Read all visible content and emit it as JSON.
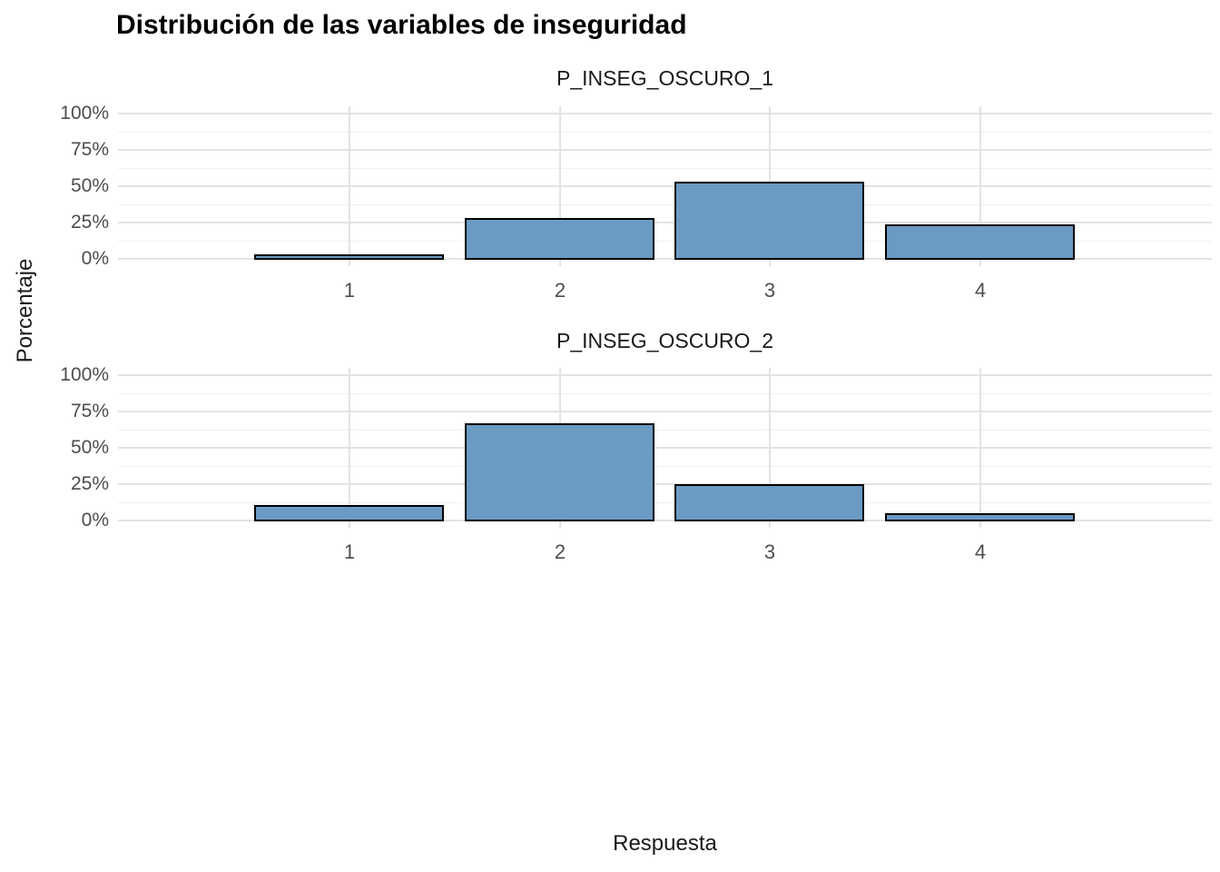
{
  "chart": {
    "title": "Distribución de las variables de inseguridad",
    "ylabel": "Porcentaje",
    "xlabel": "Respuesta"
  },
  "chart_data": {
    "type": "bar",
    "title": "Distribución de las variables de inseguridad",
    "xlabel": "Respuesta",
    "ylabel": "Porcentaje",
    "categories": [
      "1",
      "2",
      "3",
      "4"
    ],
    "facets": [
      {
        "label": "P_INSEG_OSCURO_1",
        "values": [
          1,
          26,
          51,
          22
        ]
      },
      {
        "label": "P_INSEG_OSCURO_2",
        "values": [
          9,
          65,
          23,
          3
        ]
      }
    ],
    "unit": "percent",
    "ylim": [
      0,
      100
    ],
    "y_major_ticks": [
      0,
      25,
      50,
      75,
      100
    ],
    "y_minor_ticks": [
      12.5,
      37.5,
      62.5,
      87.5
    ],
    "y_tick_labels": [
      "0%",
      "25%",
      "50%",
      "75%",
      "100%"
    ],
    "grid": "major-and-minor, horizontal + vertical at category centers",
    "legend": "none",
    "bar_fill": "#6b9ac3",
    "bar_border": "#000000",
    "grid_major_color": "#e3e3e3",
    "grid_minor_color": "#f0f0f0",
    "axis_text_color": "#4d4d4d",
    "strip_text_color": "#1a1a1a",
    "background": "#ffffff"
  }
}
